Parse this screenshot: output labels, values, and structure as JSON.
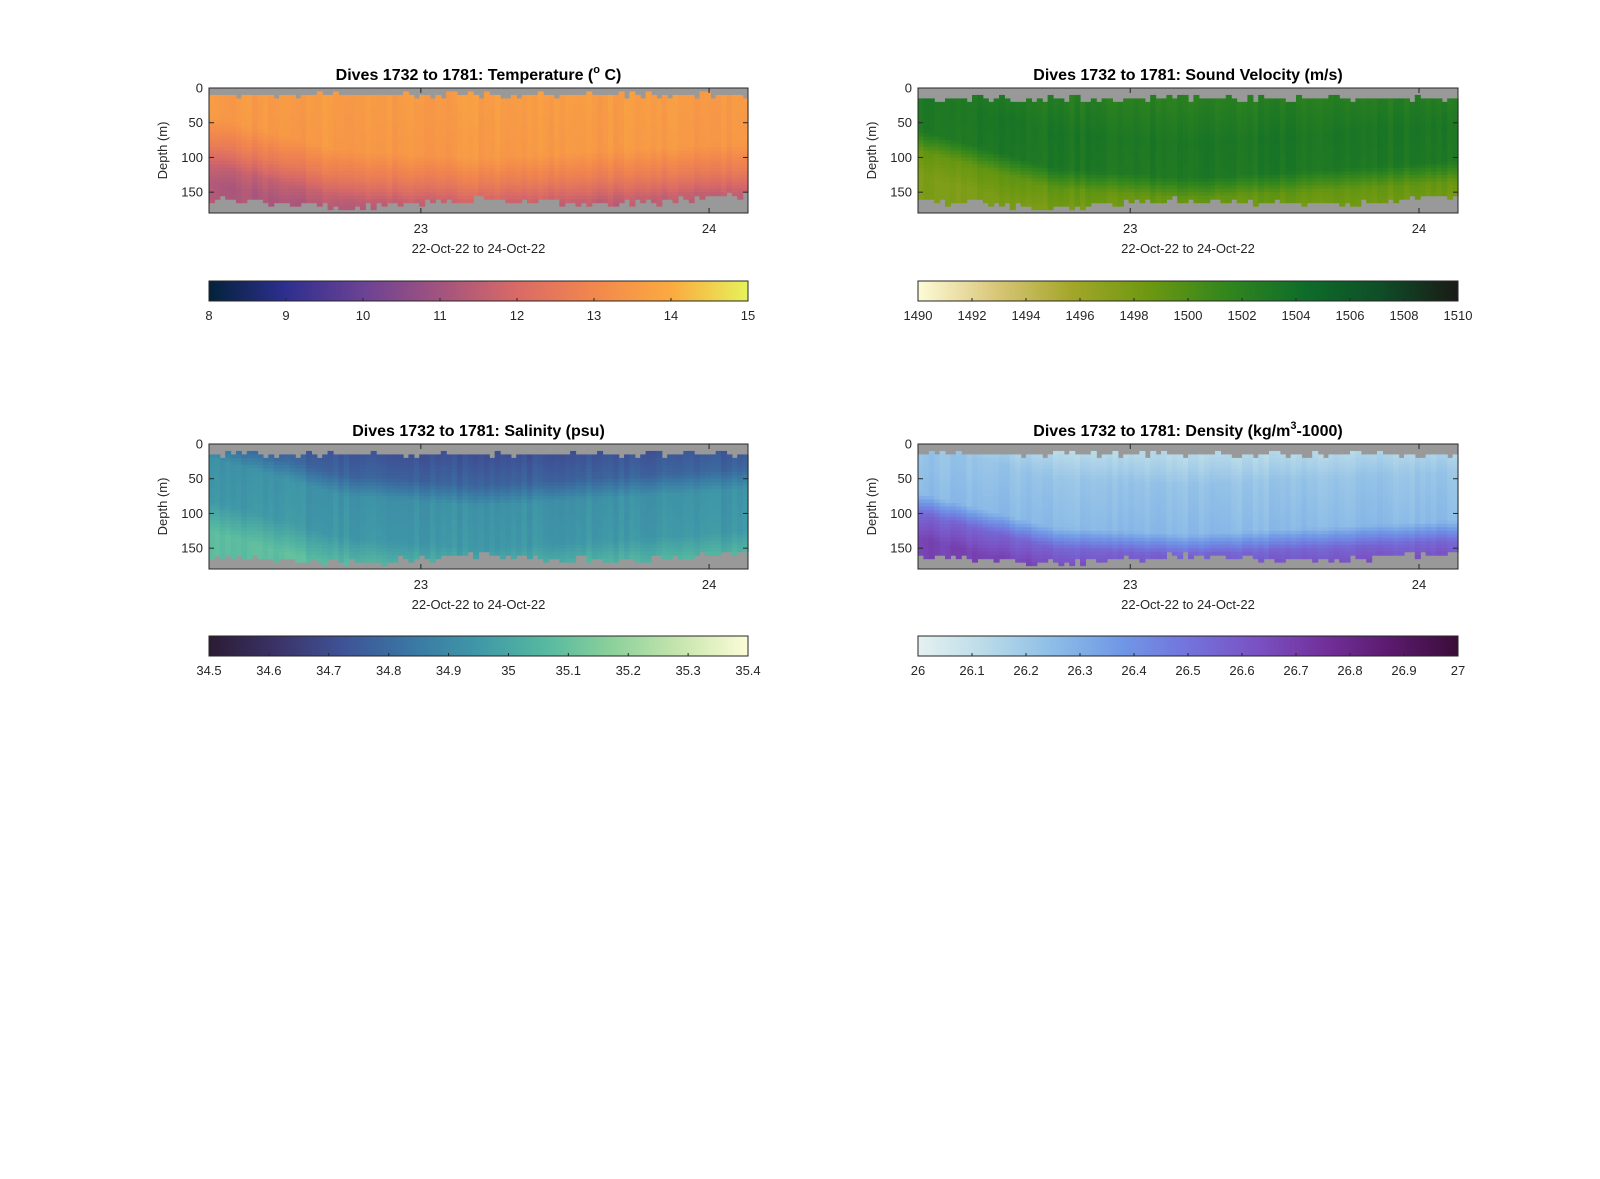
{
  "chart_data": [
    {
      "type": "heatmap",
      "title_main": "Dives 1732 to 1781: Temperature (",
      "title_sup": "o",
      "title_end": " C)",
      "xlabel": "22-Oct-22 to 24-Oct-22",
      "ylabel": "Depth (m)",
      "x_range_days": [
        22.265,
        24.135
      ],
      "x_ticks": [
        {
          "value": 23,
          "label": "23"
        },
        {
          "value": 24,
          "label": "24"
        }
      ],
      "ylim": [
        180,
        0
      ],
      "y_ticks": [
        {
          "value": 0,
          "label": "0"
        },
        {
          "value": 50,
          "label": "50"
        },
        {
          "value": 100,
          "label": "100"
        },
        {
          "value": 150,
          "label": "150"
        }
      ],
      "colorbar": {
        "min": 8,
        "max": 15,
        "ticks": [
          "8",
          "9",
          "10",
          "11",
          "12",
          "13",
          "14",
          "15"
        ],
        "colors": [
          "#03223a",
          "#2e2f8f",
          "#6b4294",
          "#a2537f",
          "#d96a66",
          "#f2874d",
          "#fbaa40",
          "#e6f25a"
        ]
      },
      "no_data_color": "#999999",
      "surface_depth_m": 10,
      "profile": {
        "layers": [
          {
            "depth_m": 0,
            "value": 13.6
          },
          {
            "depth_m": 80,
            "value": 13.5
          },
          {
            "depth_m": 120,
            "value": 12.6
          },
          {
            "depth_m": 150,
            "value": 11.6
          },
          {
            "depth_m": 175,
            "value": 11.2
          }
        ],
        "thermocline_start_depth_m": [
          70,
          120,
          130,
          120,
          110
        ],
        "bottom_depth_m": [
          160,
          172,
          160,
          168,
          155
        ]
      }
    },
    {
      "type": "heatmap",
      "title_main": "Dives 1732 to 1781: Sound Velocity (m/s)",
      "title_sup": "",
      "title_end": "",
      "xlabel": "22-Oct-22 to 24-Oct-22",
      "ylabel": "Depth (m)",
      "x_range_days": [
        22.265,
        24.135
      ],
      "x_ticks": [
        {
          "value": 23,
          "label": "23"
        },
        {
          "value": 24,
          "label": "24"
        }
      ],
      "ylim": [
        180,
        0
      ],
      "y_ticks": [
        {
          "value": 0,
          "label": "0"
        },
        {
          "value": 50,
          "label": "50"
        },
        {
          "value": 100,
          "label": "100"
        },
        {
          "value": 150,
          "label": "150"
        }
      ],
      "colorbar": {
        "min": 1490,
        "max": 1510,
        "ticks": [
          "1490",
          "1492",
          "1494",
          "1496",
          "1498",
          "1500",
          "1502",
          "1504",
          "1506",
          "1508",
          "1510"
        ],
        "colors": [
          "#fdfbd8",
          "#d9c77a",
          "#a3a629",
          "#6c9811",
          "#32861d",
          "#0e6d2a",
          "#0f4d27",
          "#1a1a16"
        ]
      },
      "no_data_color": "#999999",
      "surface_depth_m": 15,
      "profile": {
        "layers": [
          {
            "depth_m": 0,
            "value": 1502.2
          },
          {
            "depth_m": 60,
            "value": 1503.2
          },
          {
            "depth_m": 110,
            "value": 1503.0
          },
          {
            "depth_m": 140,
            "value": 1499.0
          },
          {
            "depth_m": 175,
            "value": 1497.8
          }
        ],
        "thermocline_start_depth_m": [
          60,
          115,
          130,
          118,
          105
        ],
        "bottom_depth_m": [
          160,
          172,
          160,
          168,
          155
        ]
      }
    },
    {
      "type": "heatmap",
      "title_main": "Dives 1732 to 1781: Salinity (psu)",
      "title_sup": "",
      "title_end": "",
      "xlabel": "22-Oct-22 to 24-Oct-22",
      "ylabel": "Depth (m)",
      "x_range_days": [
        22.265,
        24.135
      ],
      "x_ticks": [
        {
          "value": 23,
          "label": "23"
        },
        {
          "value": 24,
          "label": "24"
        }
      ],
      "ylim": [
        180,
        0
      ],
      "y_ticks": [
        {
          "value": 0,
          "label": "0"
        },
        {
          "value": 50,
          "label": "50"
        },
        {
          "value": 100,
          "label": "100"
        },
        {
          "value": 150,
          "label": "150"
        }
      ],
      "colorbar": {
        "min": 34.5,
        "max": 35.4,
        "ticks": [
          "34.5",
          "34.6",
          "34.7",
          "34.8",
          "34.9",
          "35",
          "35.1",
          "35.2",
          "35.3",
          "35.4"
        ],
        "colors": [
          "#2b1c33",
          "#3b3268",
          "#3e5396",
          "#3a77a4",
          "#3f98a7",
          "#56b9a0",
          "#8dd19b",
          "#c8e6ae",
          "#fcfcd8"
        ]
      },
      "no_data_color": "#999999",
      "surface_depth_m": 15,
      "profile": {
        "layers": [
          {
            "depth_m": 0,
            "value": 34.72
          },
          {
            "depth_m": 40,
            "value": 34.78
          },
          {
            "depth_m": 70,
            "value": 34.93
          },
          {
            "depth_m": 130,
            "value": 34.95
          },
          {
            "depth_m": 175,
            "value": 35.08
          }
        ],
        "thermocline_start_depth_m": [
          60,
          115,
          130,
          118,
          105
        ],
        "bottom_depth_m": [
          160,
          172,
          160,
          168,
          155
        ]
      }
    },
    {
      "type": "heatmap",
      "title_main": "Dives 1732 to 1781: Density (kg/m",
      "title_sup": "3",
      "title_end": "-1000)",
      "xlabel": "22-Oct-22 to 24-Oct-22",
      "ylabel": "Depth (m)",
      "x_range_days": [
        22.265,
        24.135
      ],
      "x_ticks": [
        {
          "value": 23,
          "label": "23"
        },
        {
          "value": 24,
          "label": "24"
        }
      ],
      "ylim": [
        180,
        0
      ],
      "y_ticks": [
        {
          "value": 0,
          "label": "0"
        },
        {
          "value": 50,
          "label": "50"
        },
        {
          "value": 100,
          "label": "100"
        },
        {
          "value": 150,
          "label": "150"
        }
      ],
      "colorbar": {
        "min": 26,
        "max": 27,
        "ticks": [
          "26",
          "26.1",
          "26.2",
          "26.3",
          "26.4",
          "26.5",
          "26.6",
          "26.7",
          "26.8",
          "26.9",
          "27"
        ],
        "colors": [
          "#e6f1f1",
          "#b9dbe8",
          "#8dbde7",
          "#7098e6",
          "#7373dc",
          "#7a52c4",
          "#72319b",
          "#5b1a6e",
          "#3a0d38"
        ]
      },
      "no_data_color": "#999999",
      "surface_depth_m": 15,
      "profile": {
        "layers": [
          {
            "depth_m": 0,
            "value": 26.13
          },
          {
            "depth_m": 40,
            "value": 26.22
          },
          {
            "depth_m": 110,
            "value": 26.26
          },
          {
            "depth_m": 140,
            "value": 26.55
          },
          {
            "depth_m": 175,
            "value": 26.68
          }
        ],
        "thermocline_start_depth_m": [
          70,
          120,
          130,
          120,
          110
        ],
        "bottom_depth_m": [
          160,
          172,
          160,
          168,
          155
        ]
      }
    }
  ]
}
